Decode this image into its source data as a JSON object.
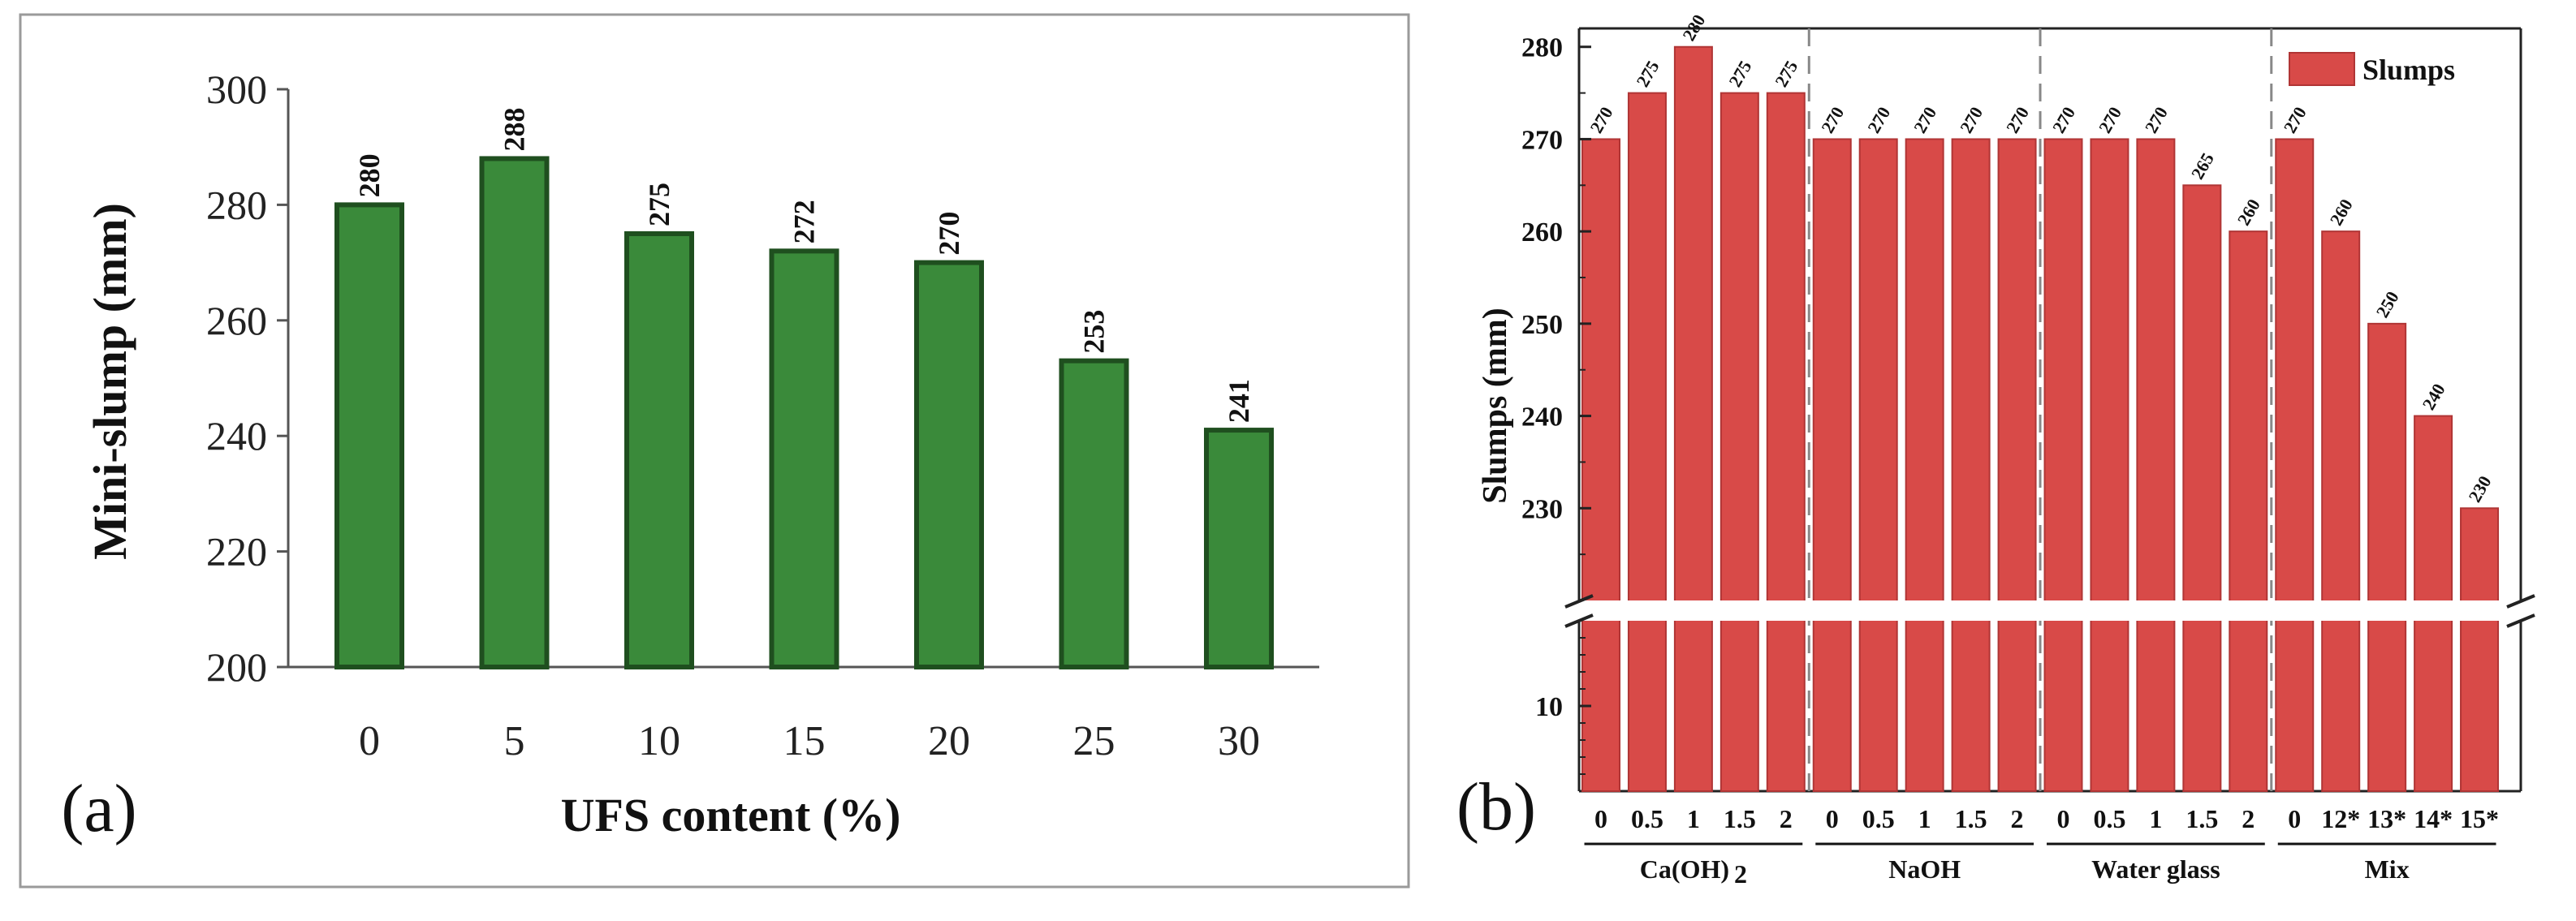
{
  "chart_data": [
    {
      "panel_label": "(a)",
      "type": "bar",
      "xlabel": "UFS content (%)",
      "ylabel": "Mini-slump (mm)",
      "categories": [
        "0",
        "5",
        "10",
        "15",
        "20",
        "25",
        "30"
      ],
      "values": [
        280,
        288,
        275,
        272,
        270,
        253,
        241
      ],
      "data_labels": [
        "280",
        "288",
        "275",
        "272",
        "270",
        "253",
        "241"
      ],
      "ylim": [
        200,
        300
      ],
      "yticks": [
        200,
        220,
        240,
        260,
        280,
        300
      ],
      "colors": {
        "bar_fill": "#3a8a3a",
        "bar_edge": "#1f4f1f",
        "frame": "#9a9a9a"
      }
    },
    {
      "panel_label": "(b)",
      "type": "bar",
      "ylabel": "Slumps (mm)",
      "legend": {
        "label": "Slumps",
        "position": "top-right"
      },
      "axis_break": {
        "lower_range": [
          0,
          20
        ],
        "upper_range": [
          220,
          282
        ]
      },
      "yticks": [
        10,
        230,
        240,
        250,
        260,
        270,
        280
      ],
      "groups": [
        {
          "name": "Ca(OH)2",
          "name_main": "Ca(OH)",
          "name_sub": "2",
          "categories": [
            "0",
            "0.5",
            "1",
            "1.5",
            "2"
          ],
          "values": [
            270,
            275,
            280,
            275,
            275
          ]
        },
        {
          "name": "NaOH",
          "categories": [
            "0",
            "0.5",
            "1",
            "1.5",
            "2"
          ],
          "values": [
            270,
            270,
            270,
            270,
            270
          ]
        },
        {
          "name": "Water glass",
          "categories": [
            "0",
            "0.5",
            "1",
            "1.5",
            "2"
          ],
          "values": [
            270,
            270,
            270,
            265,
            260
          ]
        },
        {
          "name": "Mix",
          "categories": [
            "0",
            "12*",
            "13*",
            "14*",
            "15*"
          ],
          "values": [
            270,
            260,
            250,
            240,
            230
          ]
        }
      ],
      "colors": {
        "bar_fill": "#d84a48",
        "bar_edge": "#b03535",
        "divider": "#888888"
      }
    }
  ]
}
